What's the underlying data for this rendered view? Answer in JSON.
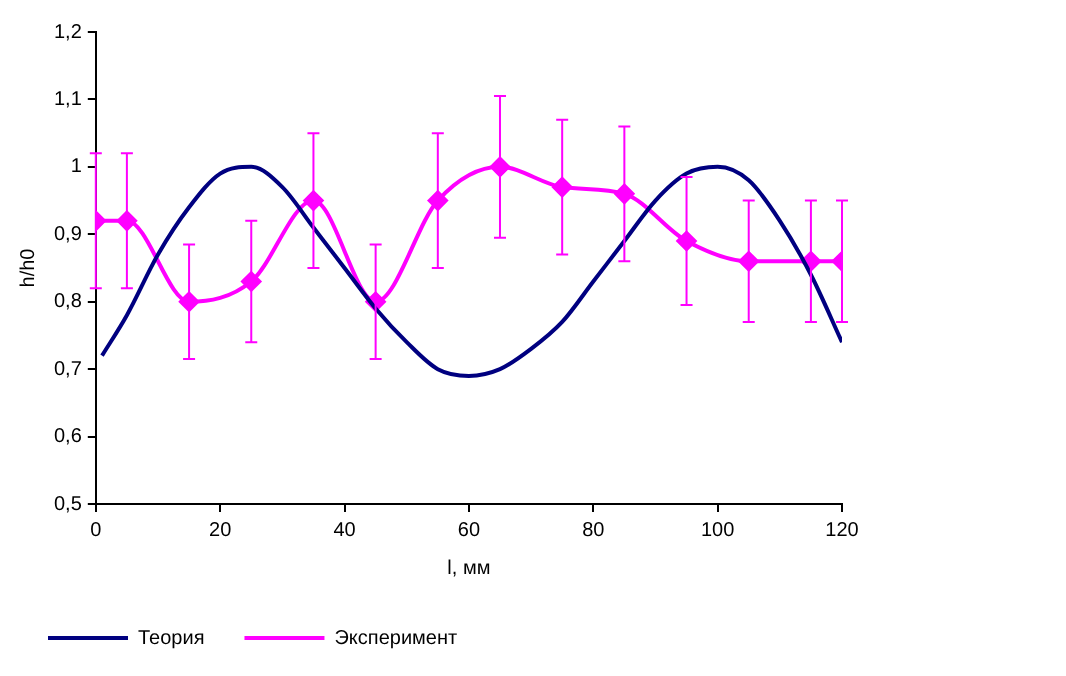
{
  "chart_data": {
    "type": "line",
    "xlabel": "l, мм",
    "ylabel": "h/h0",
    "xlim": [
      0,
      120
    ],
    "xticks": [
      0,
      20,
      40,
      60,
      80,
      100,
      120
    ],
    "ylim": [
      0.5,
      1.2
    ],
    "yticks": [
      {
        "value": 0.5,
        "label": "0,5"
      },
      {
        "value": 0.6,
        "label": "0,6"
      },
      {
        "value": 0.7,
        "label": "0,7"
      },
      {
        "value": 0.8,
        "label": "0,8"
      },
      {
        "value": 0.9,
        "label": "0,9"
      },
      {
        "value": 1,
        "label": "1"
      },
      {
        "value": 1.1,
        "label": "1,1"
      },
      {
        "value": 1.2,
        "label": "1,2"
      }
    ],
    "grid": false,
    "legend": "bottom",
    "series": [
      {
        "name": "Теория",
        "color": "#000080",
        "marker": "none",
        "x": [
          1,
          5,
          10,
          15,
          20,
          25,
          30,
          35,
          40,
          45,
          50,
          55,
          60,
          65,
          70,
          75,
          80,
          85,
          90,
          95,
          100,
          105,
          110,
          115,
          120
        ],
        "values": [
          0.72,
          0.78,
          0.87,
          0.94,
          0.99,
          1.0,
          0.97,
          0.91,
          0.85,
          0.79,
          0.74,
          0.7,
          0.69,
          0.7,
          0.73,
          0.77,
          0.83,
          0.89,
          0.95,
          0.99,
          1.0,
          0.98,
          0.92,
          0.84,
          0.74
        ]
      },
      {
        "name": "Эксперимент",
        "color": "#ff00ff",
        "marker": "diamond",
        "x": [
          0,
          5,
          15,
          25,
          35,
          45,
          55,
          65,
          75,
          85,
          95,
          105,
          115,
          120
        ],
        "values": [
          0.92,
          0.92,
          0.8,
          0.83,
          0.95,
          0.8,
          0.95,
          1.0,
          0.97,
          0.96,
          0.89,
          0.86,
          0.86,
          0.86
        ],
        "errors": [
          0.1,
          0.1,
          0.085,
          0.09,
          0.1,
          0.085,
          0.1,
          0.105,
          0.1,
          0.1,
          0.095,
          0.09,
          0.09,
          0.09
        ]
      }
    ]
  }
}
